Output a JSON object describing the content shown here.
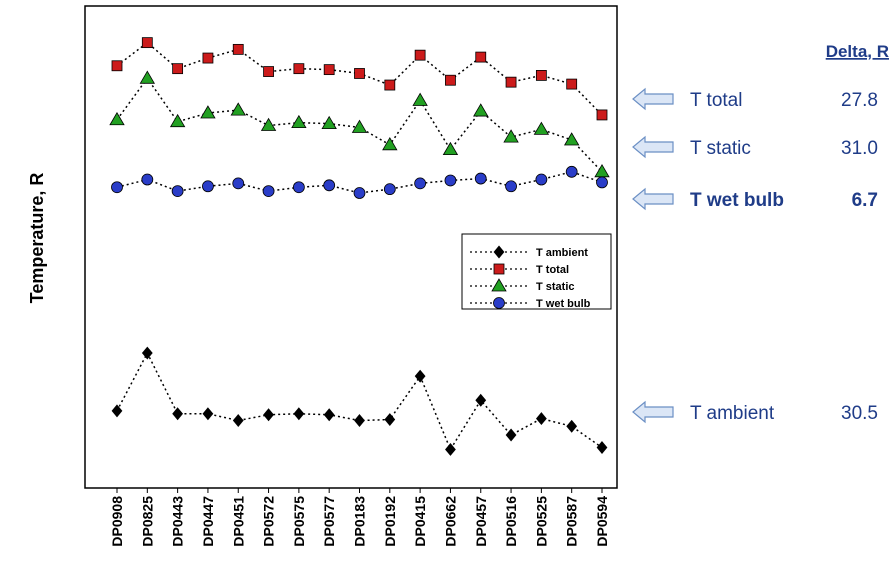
{
  "chart_data": {
    "type": "line",
    "title": "",
    "xlabel": "",
    "ylabel": "Temperature, R",
    "categories": [
      "DP0908",
      "DP0825",
      "DP0443",
      "DP0447",
      "DP0451",
      "DP0572",
      "DP0575",
      "DP0577",
      "DP0183",
      "DP0192",
      "DP0415",
      "DP0662",
      "DP0457",
      "DP0516",
      "DP0525",
      "DP0587",
      "DP0594"
    ],
    "y_axis_ticks": "none",
    "grid": false,
    "legend_position": "right-middle inside plot",
    "series": [
      {
        "name": "T ambient",
        "marker": "diamond",
        "color": "#000000",
        "values": [
          5.0,
          11.0,
          4.7,
          4.7,
          4.0,
          4.6,
          4.7,
          4.6,
          4.0,
          4.1,
          8.6,
          1.0,
          6.1,
          2.5,
          4.2,
          3.4,
          1.2
        ]
      },
      {
        "name": "T total",
        "marker": "square",
        "color": "#cc1b1b",
        "values": [
          40.8,
          43.2,
          40.5,
          41.6,
          42.5,
          40.2,
          40.5,
          40.4,
          40.0,
          38.8,
          41.9,
          39.3,
          41.7,
          39.1,
          39.8,
          38.9,
          35.7
        ]
      },
      {
        "name": "T static",
        "marker": "triangle",
        "color": "#22a022",
        "values": [
          35.2,
          39.5,
          35.0,
          35.9,
          36.2,
          34.6,
          34.9,
          34.8,
          34.4,
          32.6,
          37.2,
          32.1,
          36.1,
          33.4,
          34.2,
          33.1,
          29.8
        ]
      },
      {
        "name": "T wet bulb",
        "marker": "circle",
        "color": "#2a3dc8",
        "values": [
          28.2,
          29.0,
          27.8,
          28.3,
          28.6,
          27.8,
          28.2,
          28.4,
          27.6,
          28.0,
          28.6,
          28.9,
          29.1,
          28.3,
          29.0,
          29.8,
          28.7
        ]
      }
    ],
    "ylim": [
      -3,
      47
    ]
  },
  "annotations": {
    "delta_header": "Delta, R",
    "rows": [
      {
        "label": "T total",
        "value": "27.8",
        "bold": false
      },
      {
        "label": "T static",
        "value": "31.0",
        "bold": false
      },
      {
        "label": "T wet bulb",
        "value": "6.7",
        "bold": true
      },
      {
        "label": "T ambient",
        "value": "30.5",
        "bold": false
      }
    ]
  },
  "colors": {
    "annotation_text": "#1f3c88",
    "arrow_fill": "#dbe6f6",
    "arrow_stroke": "#6b8fc4"
  }
}
